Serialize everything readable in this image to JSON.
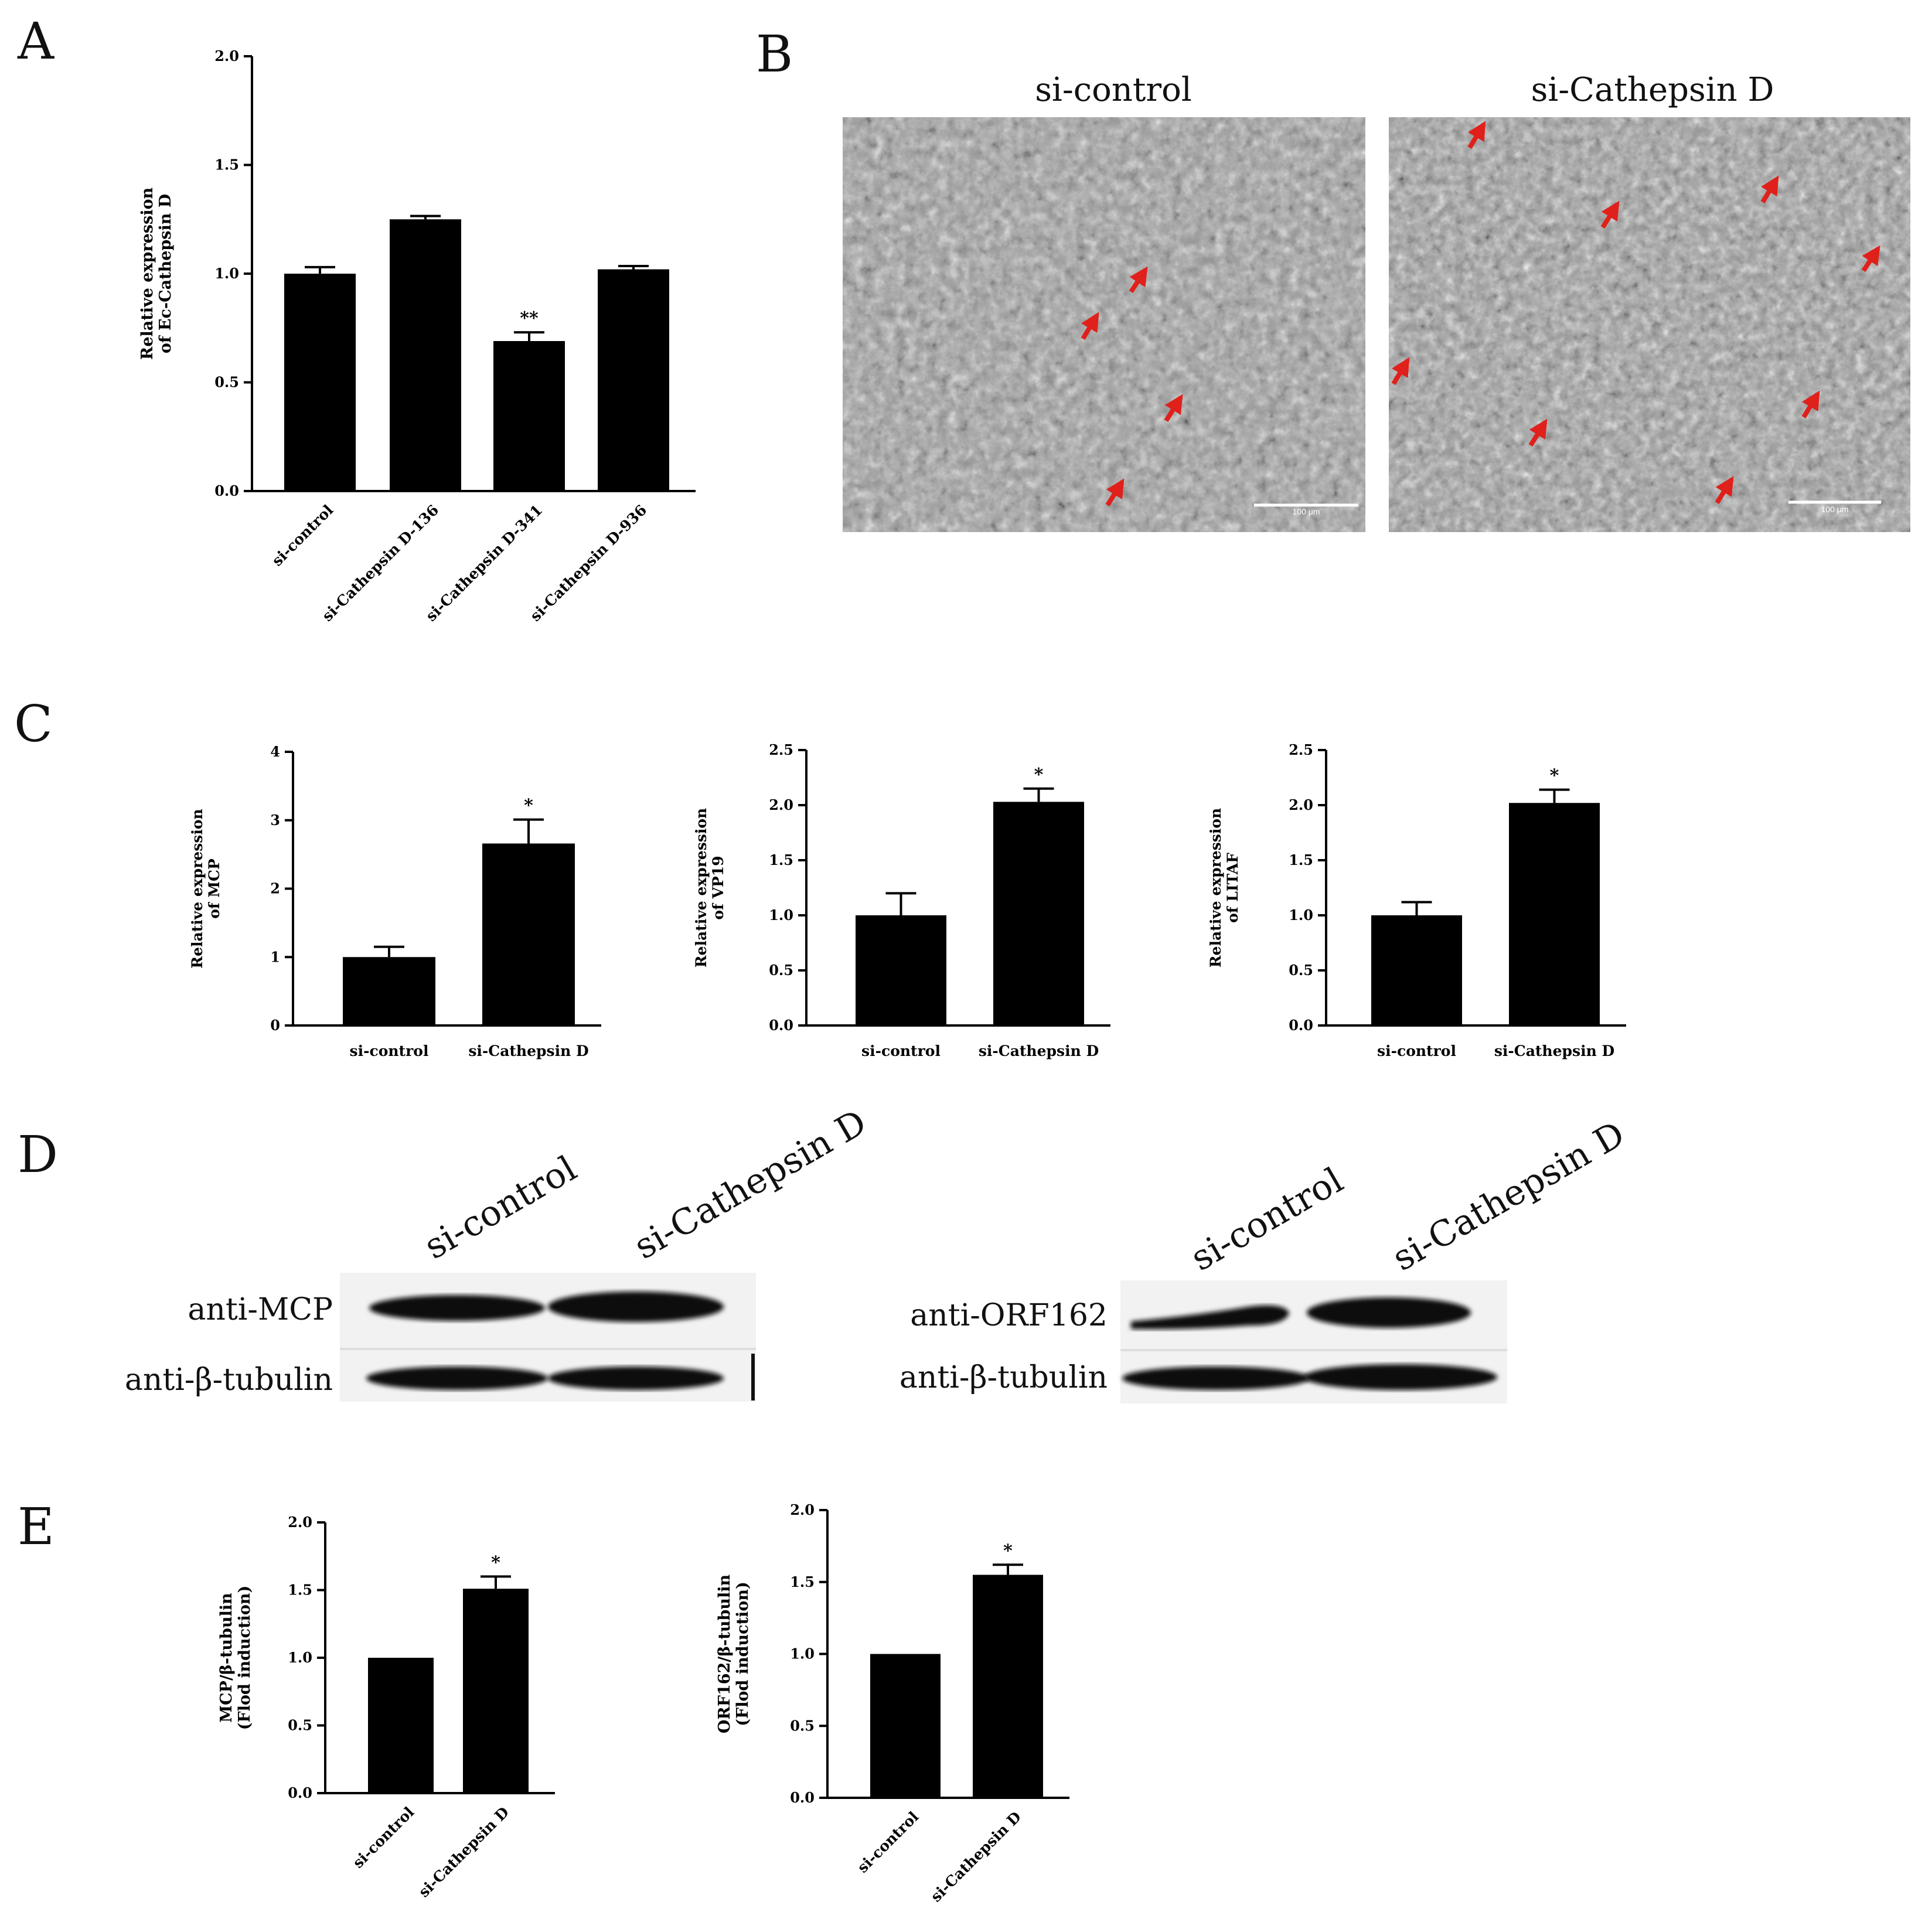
{
  "panels": {
    "a": "A",
    "b": "B",
    "c": "C",
    "d": "D",
    "e": "E"
  },
  "chart_data": [
    {
      "id": "A",
      "type": "bar",
      "title": "",
      "xlabel": "",
      "ylabel": "Relative expression\nof Ec-Cathepsin D",
      "ylim": [
        0,
        2.0
      ],
      "yticks": [
        "0.0",
        "0.5",
        "1.0",
        "1.5",
        "2.0"
      ],
      "categories": [
        "si-control",
        "si-Cathepsin D-136",
        "si-Cathepsin D-341",
        "si-Cathepsin D-936"
      ],
      "values": [
        1.0,
        1.25,
        0.69,
        1.02
      ],
      "errors": [
        0.03,
        0.015,
        0.04,
        0.015
      ],
      "significance": [
        "",
        "",
        "**",
        ""
      ],
      "grid": false,
      "rotated_labels": true
    },
    {
      "id": "C1",
      "type": "bar",
      "title": "",
      "xlabel": "",
      "ylabel": "Relative expression\nof MCP",
      "ylim": [
        0,
        4
      ],
      "yticks": [
        "0",
        "1",
        "2",
        "3",
        "4"
      ],
      "categories": [
        "si-control",
        "si-Cathepsin D"
      ],
      "values": [
        1.0,
        2.66
      ],
      "errors": [
        0.15,
        0.35
      ],
      "significance": [
        "",
        "*"
      ],
      "grid": false
    },
    {
      "id": "C2",
      "type": "bar",
      "title": "",
      "xlabel": "",
      "ylabel": "Relative expression\nof VP19",
      "ylim": [
        0,
        2.5
      ],
      "yticks": [
        "0.0",
        "0.5",
        "1.0",
        "1.5",
        "2.0",
        "2.5"
      ],
      "categories": [
        "si-control",
        "si-Cathepsin D"
      ],
      "values": [
        1.0,
        2.03
      ],
      "errors": [
        0.2,
        0.12
      ],
      "significance": [
        "",
        "*"
      ],
      "grid": false
    },
    {
      "id": "C3",
      "type": "bar",
      "title": "",
      "xlabel": "",
      "ylabel": "Relative expression\nof LITAF",
      "ylim": [
        0,
        2.5
      ],
      "yticks": [
        "0.0",
        "0.5",
        "1.0",
        "1.5",
        "2.0",
        "2.5"
      ],
      "categories": [
        "si-control",
        "si-Cathepsin D"
      ],
      "values": [
        1.0,
        2.02
      ],
      "errors": [
        0.12,
        0.12
      ],
      "significance": [
        "",
        "*"
      ],
      "grid": false
    },
    {
      "id": "E1",
      "type": "bar",
      "title": "",
      "xlabel": "",
      "ylabel": "MCP/β-tubulin\n(Flod induction)",
      "ylim": [
        0,
        2.0
      ],
      "yticks": [
        "0.0",
        "0.5",
        "1.0",
        "1.5",
        "2.0"
      ],
      "categories": [
        "si-control",
        "si-Cathepsin D"
      ],
      "values": [
        1.0,
        1.51
      ],
      "errors": [
        0.0,
        0.09
      ],
      "significance": [
        "",
        "*"
      ],
      "grid": false,
      "rotated_labels": true
    },
    {
      "id": "E2",
      "type": "bar",
      "title": "",
      "xlabel": "",
      "ylabel": "ORF162/β-tubulin\n(Flod induction)",
      "ylim": [
        0,
        2.0
      ],
      "yticks": [
        "0.0",
        "0.5",
        "1.0",
        "1.5",
        "2.0"
      ],
      "categories": [
        "si-control",
        "si-Cathepsin D"
      ],
      "values": [
        1.0,
        1.55
      ],
      "errors": [
        0.0,
        0.07
      ],
      "significance": [
        "",
        "*"
      ],
      "grid": false,
      "rotated_labels": true
    }
  ],
  "micrographs": {
    "left_title": "si-control",
    "right_title": "si-Cathepsin D",
    "left_scale_label": "100 μm",
    "right_scale_label": "100 μm"
  },
  "blots": {
    "left": {
      "lanes": [
        "si-control",
        "si-Cathepsin D"
      ],
      "rows": [
        "anti-MCP",
        "anti-β-tubulin"
      ]
    },
    "right": {
      "lanes": [
        "si-control",
        "si-Cathepsin D"
      ],
      "rows": [
        "anti-ORF162",
        "anti-β-tubulin"
      ]
    }
  },
  "colors": {
    "bar": "#000000",
    "arrow": "#e0201b",
    "micrograph_bg": "#9c9c9c",
    "blot_bg": "#f2f2f2",
    "band": "#111111"
  }
}
